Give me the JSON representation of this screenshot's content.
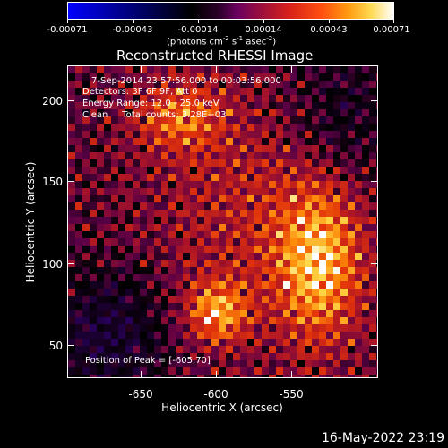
{
  "colorbar": {
    "ticks": [
      "-0.00071",
      "-0.00043",
      "-0.00014",
      "0.00014",
      "0.00043",
      "0.00071"
    ],
    "unit_parts": [
      "(photons cm",
      "-2",
      " s",
      "-1",
      " asec",
      "-2",
      ")"
    ]
  },
  "title": "Reconstructed RHESSI Image",
  "annotations": {
    "time_range": "7-Sep-2014 23:57:56.000 to 00:03:56.000",
    "detectors": "Detectors: 3F 6F 9F, Att 0",
    "energy": "Energy Range: 12.0 - 25.0 keV",
    "clean": "Clean     Total counts: 3.28E+03",
    "peak": "Position of Peak = [-605,70]"
  },
  "x_axis": {
    "label": "Heliocentric X (arcsec)",
    "ticks": [
      "-650",
      "-600",
      "-550"
    ]
  },
  "y_axis": {
    "label": "Heliocentric Y (arcsec)",
    "ticks": [
      "200",
      "150",
      "100",
      "50"
    ]
  },
  "footer_timestamp": "16-May-2022 23:19",
  "colors": {
    "background": "#000000",
    "text": "#ffffff"
  }
}
